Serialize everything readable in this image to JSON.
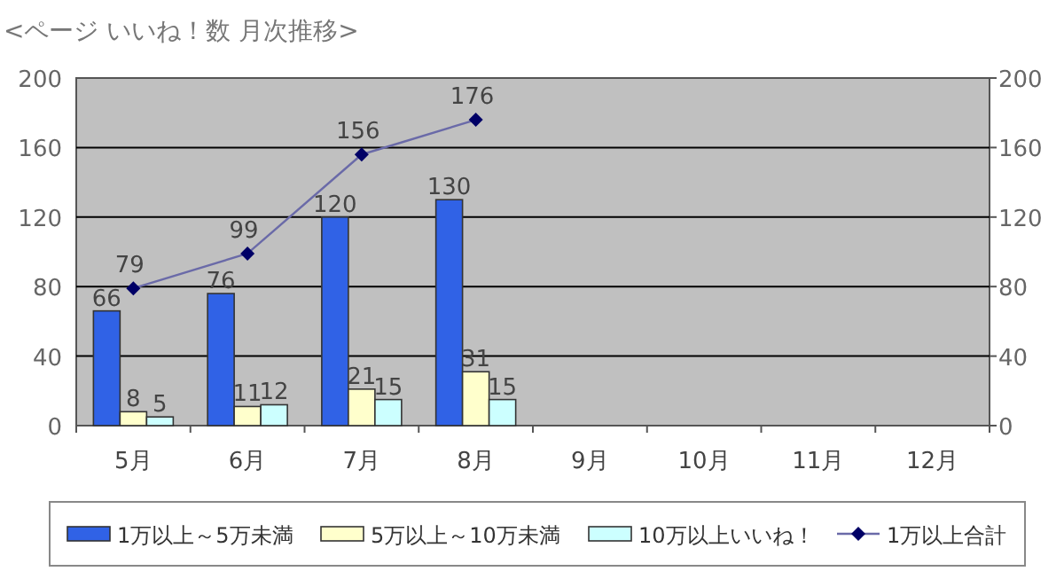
{
  "chart_data": {
    "type": "bar",
    "title": "<ページ いいね！数 月次推移>",
    "categories": [
      "5月",
      "6月",
      "7月",
      "8月",
      "9月",
      "10月",
      "11月",
      "12月"
    ],
    "series": [
      {
        "name": "1万以上～5万未満",
        "color": "#3062e6",
        "values": [
          66,
          76,
          120,
          130,
          null,
          null,
          null,
          null
        ]
      },
      {
        "name": "5万以上～10万未満",
        "color": "#ffffcc",
        "values": [
          8,
          11,
          21,
          31,
          null,
          null,
          null,
          null
        ]
      },
      {
        "name": "10万以上いいね！",
        "color": "#ccffff",
        "values": [
          5,
          12,
          15,
          15,
          null,
          null,
          null,
          null
        ]
      },
      {
        "name": "1万以上合計",
        "type": "line",
        "color": "#000066",
        "marker": "diamond",
        "values": [
          79,
          99,
          156,
          176,
          null,
          null,
          null,
          null
        ]
      }
    ],
    "ylim": [
      0,
      200
    ],
    "yticks": [
      0,
      40,
      80,
      120,
      160,
      200
    ],
    "y2lim": [
      0,
      200
    ],
    "y2ticks": [
      0,
      40,
      80,
      120,
      160,
      200
    ],
    "grid": "y",
    "legend": "bottom",
    "data_labels": true
  }
}
